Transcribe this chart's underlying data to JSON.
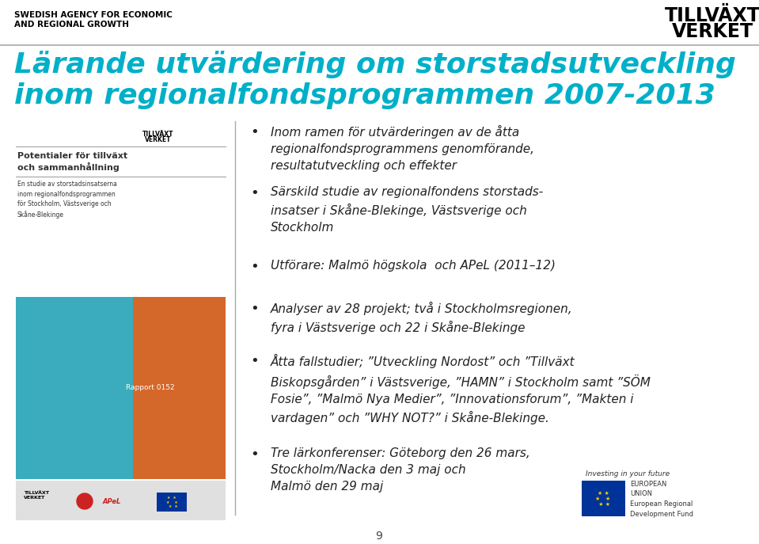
{
  "header_line1": "SWEDISH AGENCY FOR ECONOMIC",
  "header_line2": "AND REGIONAL GROWTH",
  "logo_text_line1": "TILLVÄXT",
  "logo_text_line2": "VERKET",
  "title_line1": "Lärande utvärdering om storstadsutveckling",
  "title_line2": "inom regionalfondsprogrammen 2007-2013",
  "title_color": "#00b0c8",
  "bullet_points": [
    "Inom ramen för utvärderingen av de åtta\nregionalfondsprogrammens genomförande,\nresultatutveckling och effekter",
    "Särskild studie av regionalfondens storstads-\ninsatser i Skåne-Blekinge, Västsverige och\nStockholm",
    "Utförare: Malmö högskola  och APeL (2011–12)",
    "Analyser av 28 projekt; två i Stockholmsregionen,\nfyra i Västsverige och 22 i Skåne-Blekinge",
    "Åtta fallstudier; ”Utveckling Nordost” och ”Tillväxt\nBiskopsgården” i Västsverige, ”HAMN” i Stockholm samt ”SÖM\nFosie”, ”Malmö Nya Medier”, ”Innovationsforum”, ”Makten i\nvardagen” och ”WHY NOT?” i Skåne-Blekinge.",
    "Tre lärkonferenser: Göteborg den 26 mars,\nStockholm/Nacka den 3 maj och\nMalmö den 29 maj"
  ],
  "bullet_color": "#222222",
  "bullet_fontsize": 11.0,
  "header_color": "#000000",
  "header_fontsize": 7.5,
  "bg_color": "#ffffff",
  "divider_color": "#aaaaaa",
  "page_number": "9",
  "report_cover_orange": "#d4672a",
  "report_cover_teal": "#3aacbe",
  "report_cover_gray": "#e0e0e0",
  "eu_text": "Investing in your future",
  "eu_fund_text": "EUROPEAN\nUNION\nEuropean Regional\nDevelopment Fund",
  "eu_bg_color": "#003399",
  "eu_star_color": "#ffcc00",
  "cover_title1": "Potentialer för tillväxt",
  "cover_title2": "och sammanhållning",
  "cover_sub": "En studie av storstadsinsatserna\ninom regionalfondsprogrammen\nför Stockholm, Västsverige och\nSkåne-Blekinge",
  "rapport_text": "Rapport 0152"
}
